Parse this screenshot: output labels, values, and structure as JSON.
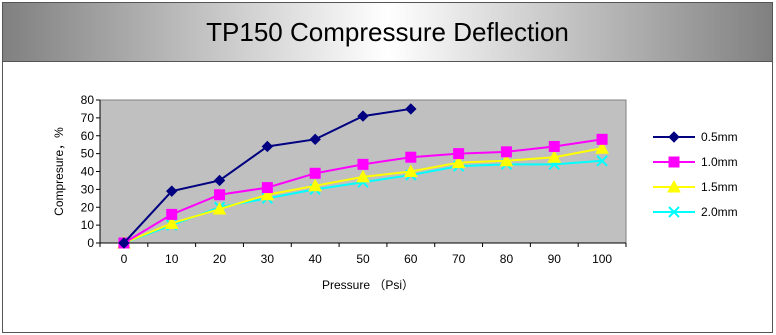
{
  "chart_data": {
    "type": "line",
    "title": "TP150 Compressure Deflection",
    "xlabel": "Pressure （Psi）",
    "ylabel": "Compresure，%",
    "x": [
      0,
      10,
      20,
      30,
      40,
      50,
      60,
      70,
      80,
      90,
      100
    ],
    "xlim": [
      0,
      100
    ],
    "ylim": [
      0,
      80
    ],
    "yticks": [
      0,
      10,
      20,
      30,
      40,
      50,
      60,
      70,
      80
    ],
    "grid": false,
    "legend_position": "right",
    "plot_background": "#c0c0c0",
    "series": [
      {
        "name": "0.5mm",
        "color": "#000080",
        "marker": "diamond",
        "values": [
          0,
          29,
          35,
          54,
          58,
          71,
          75,
          null,
          null,
          null,
          null
        ]
      },
      {
        "name": "1.0mm",
        "color": "#ff00ff",
        "marker": "square",
        "values": [
          0,
          16,
          27,
          31,
          39,
          44,
          48,
          50,
          51,
          54,
          58
        ]
      },
      {
        "name": "1.5mm",
        "color": "#ffff00",
        "marker": "triangle",
        "values": [
          0,
          11,
          19,
          27,
          32,
          37,
          40,
          45,
          46,
          48,
          53
        ]
      },
      {
        "name": "2.0mm",
        "color": "#00ffff",
        "marker": "x",
        "values": [
          0,
          10,
          20,
          25,
          30,
          34,
          38,
          43,
          44,
          44,
          46
        ]
      }
    ]
  }
}
